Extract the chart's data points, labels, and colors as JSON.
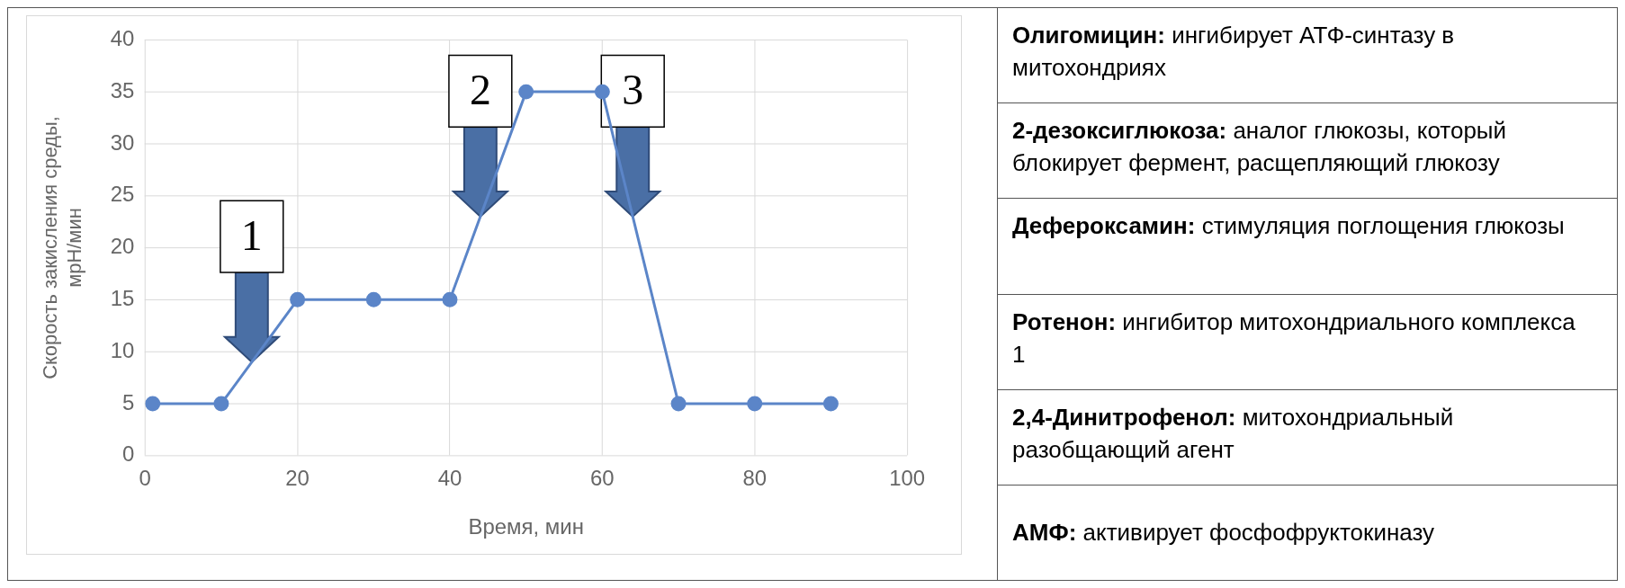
{
  "chart_data": [
    {
      "type": "line",
      "xlabel": "Время, мин",
      "ylabel": "Скорость закисления среды, мрН/мин",
      "x": [
        1,
        10,
        20,
        30,
        40,
        50,
        60,
        70,
        80,
        90
      ],
      "values": [
        5,
        5,
        15,
        15,
        15,
        35,
        35,
        5,
        5,
        5
      ],
      "color": "#5b85c8",
      "marker": "circle",
      "grid": true,
      "xlim": [
        0,
        100
      ],
      "xticks": [
        0,
        20,
        40,
        60,
        80,
        100
      ],
      "ylim": [
        0,
        40
      ],
      "yticks": [
        0,
        5,
        10,
        15,
        20,
        25,
        30,
        35,
        40
      ],
      "annotations": [
        {
          "text": "1",
          "x": 14,
          "y": 9
        },
        {
          "text": "2",
          "x": 44,
          "y": 23
        },
        {
          "text": "3",
          "x": 64,
          "y": 23
        }
      ]
    },
    {
      "type": "other",
      "annotations": [
        "Олигомицин: ингибирует АТФ-синтазу в митохондриях",
        "2-дезоксиглюкоза: аналог глюкозы, который блокирует фермент, расщепляющий глюкозу",
        "Дефероксамин: стимуляция поглощения глюкозы",
        "Ротенон: ингибитор митохондриального комплекса 1",
        "2,4-Динитрофенол: митохондриальный разобщающий агент",
        "АМФ: активирует фосфофруктокиназу"
      ]
    }
  ]
}
